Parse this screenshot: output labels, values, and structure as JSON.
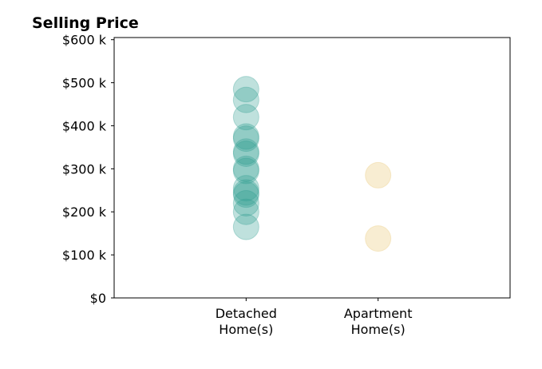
{
  "chart_data": {
    "type": "scatter",
    "title": "Selling Price",
    "xlabel": "",
    "ylabel": "",
    "categories": [
      "Detached\nHome(s)",
      "Apartment\nHome(s)"
    ],
    "xlim": [
      0,
      3
    ],
    "ylim": [
      0,
      605000
    ],
    "y_ticks": [
      0,
      100000,
      200000,
      300000,
      400000,
      500000,
      600000
    ],
    "y_tick_labels": [
      "$0",
      "$100 k",
      "$200 k",
      "$300 k",
      "$400 k",
      "$500 k",
      "$600 k"
    ],
    "grid": false,
    "series": [
      {
        "category_index": 0,
        "color": "#2a9d8f",
        "values": [
          485000,
          460000,
          420000,
          375000,
          370000,
          340000,
          335000,
          300000,
          295000,
          255000,
          245000,
          240000,
          220000,
          200000,
          165000
        ]
      },
      {
        "category_index": 1,
        "color": "#e9c46a",
        "values": [
          285000,
          138000
        ]
      }
    ]
  }
}
